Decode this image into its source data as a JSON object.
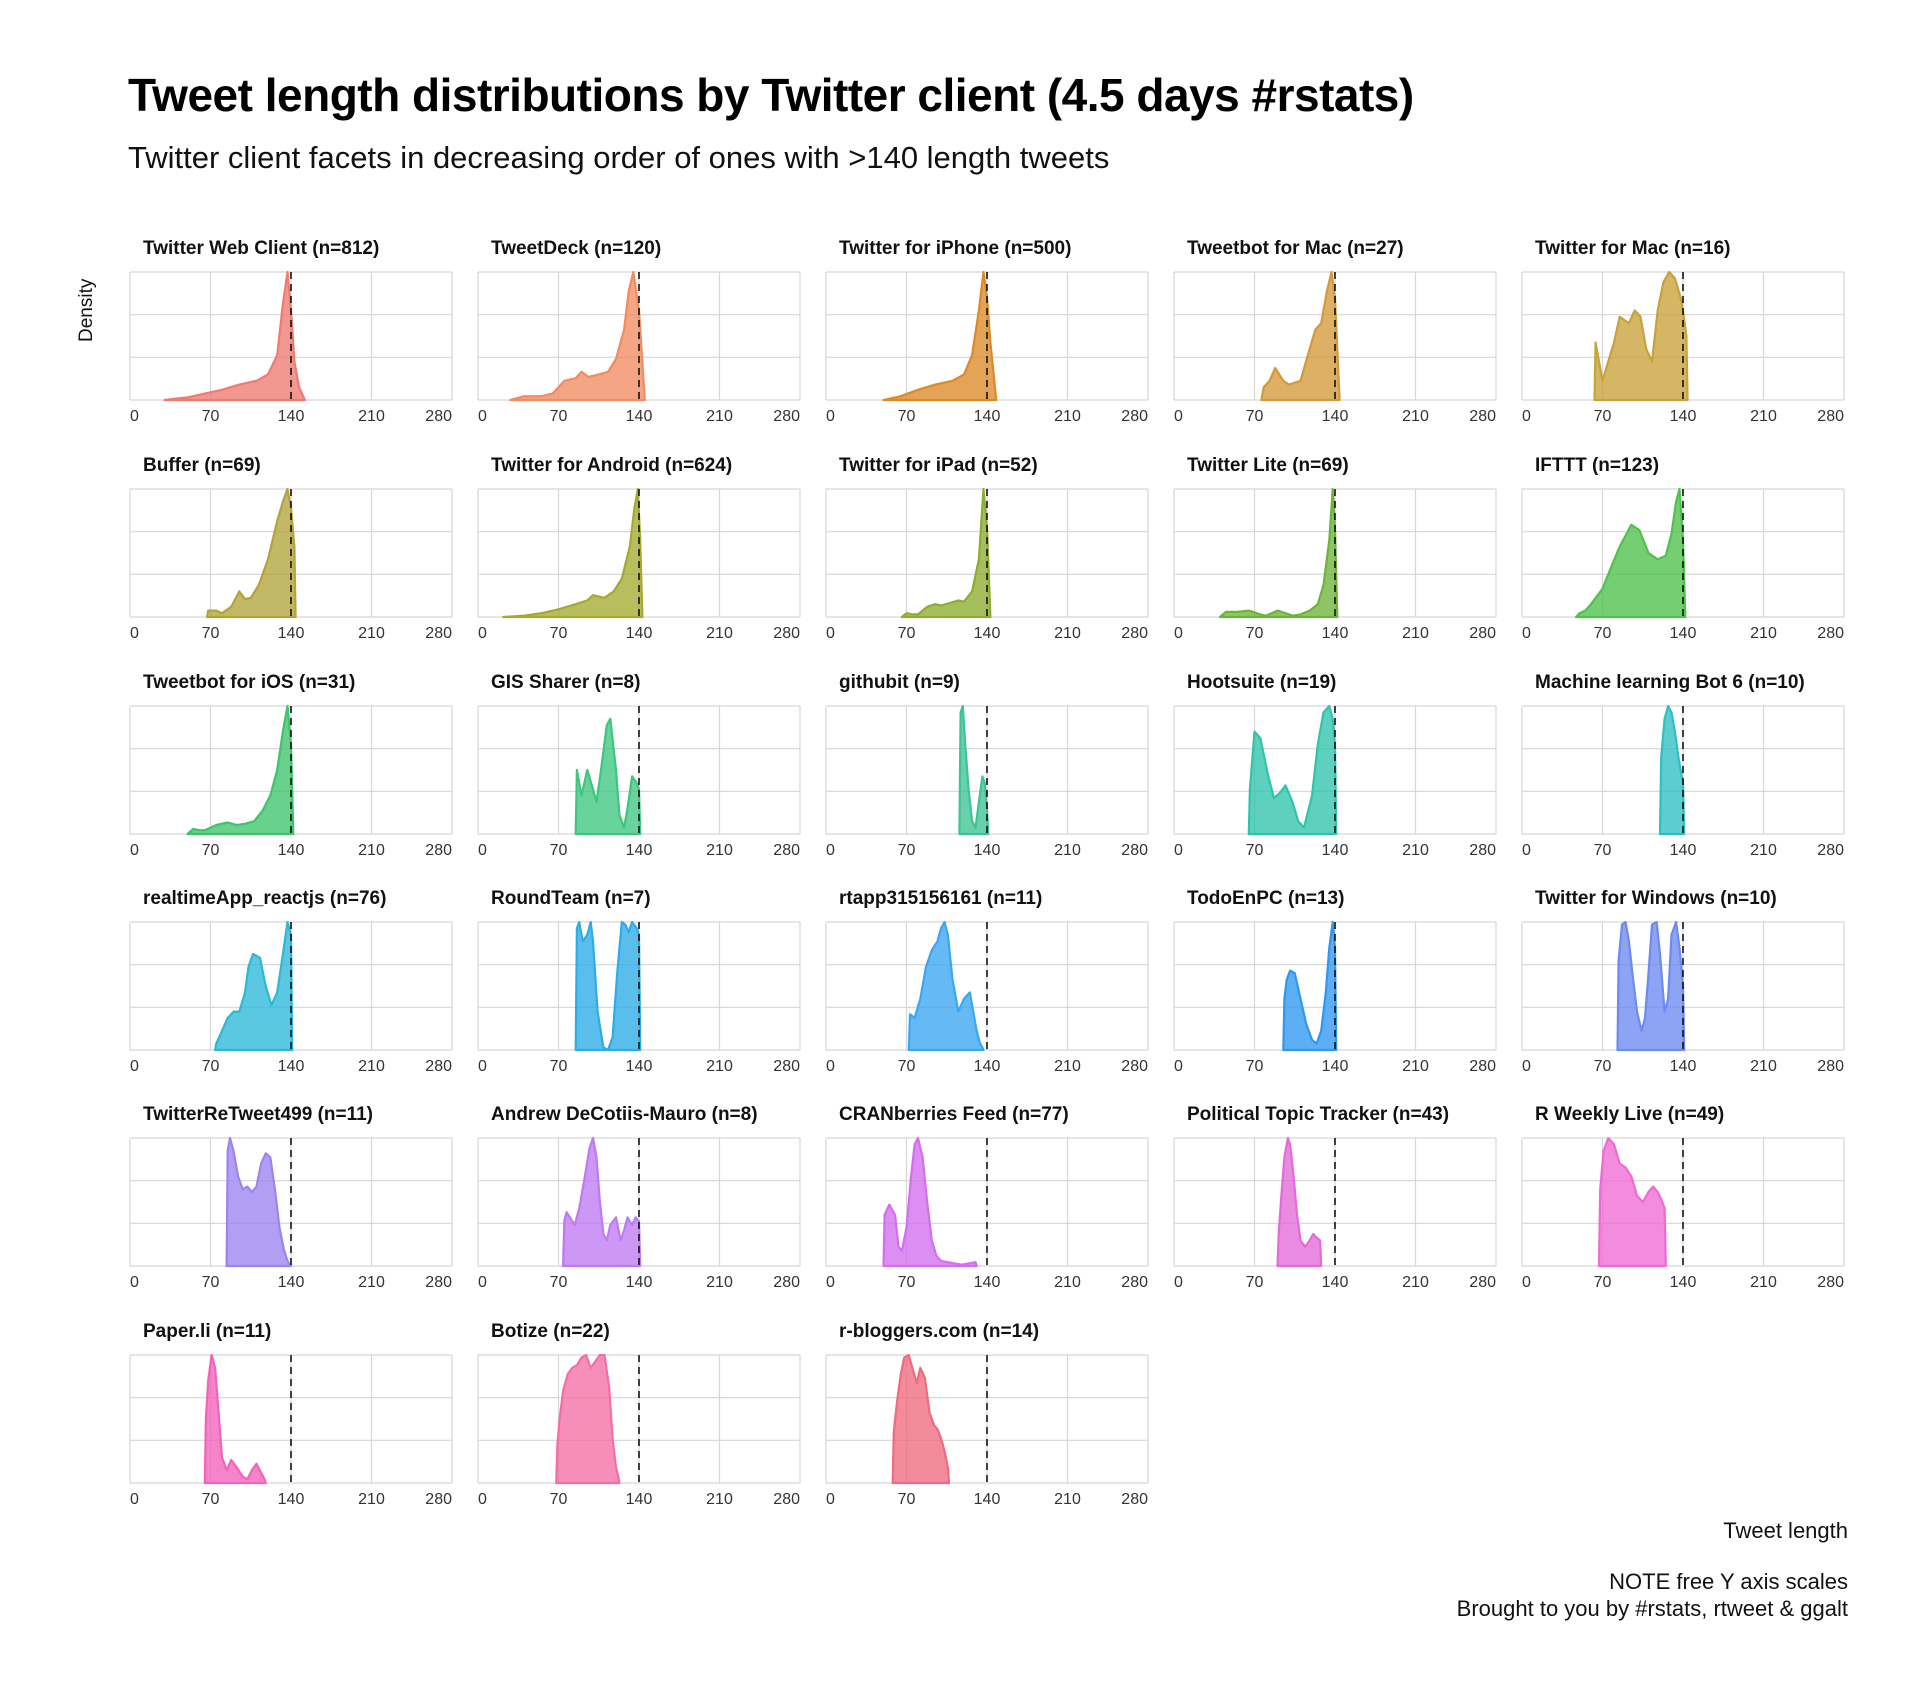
{
  "chart_data": {
    "type": "area",
    "title": "Tweet length distributions by Twitter client (4.5 days #rstats)",
    "subtitle": "Twitter client facets in decreasing order of ones with >140 length tweets",
    "xlabel": "Tweet length",
    "ylabel": "Density",
    "caption": [
      "NOTE free Y axis scales",
      "Brought to you by #rstats, rtweet & ggalt"
    ],
    "xlim": [
      0,
      280
    ],
    "x_ticks": [
      "0",
      "70",
      "140",
      "210",
      "280"
    ],
    "reference_line": 140,
    "grid": true,
    "facets": [
      {
        "label": "Twitter Web Client (n=812)",
        "color": "#F07A72",
        "x": [
          30,
          50,
          65,
          80,
          95,
          110,
          120,
          128,
          133,
          137,
          140,
          143,
          147,
          152
        ],
        "y": [
          0,
          0.02,
          0.05,
          0.08,
          0.12,
          0.15,
          0.2,
          0.35,
          0.75,
          1.0,
          0.7,
          0.3,
          0.1,
          0
        ]
      },
      {
        "label": "TweetDeck (n=120)",
        "color": "#F08C62",
        "x": [
          28,
          40,
          55,
          65,
          75,
          85,
          90,
          96,
          105,
          113,
          120,
          127,
          131,
          135,
          140,
          145
        ],
        "y": [
          0,
          0.03,
          0.03,
          0.05,
          0.15,
          0.17,
          0.22,
          0.18,
          0.2,
          0.22,
          0.32,
          0.55,
          0.85,
          1.0,
          0.7,
          0
        ]
      },
      {
        "label": "Twitter for iPhone (n=500)",
        "color": "#DC8A28",
        "x": [
          50,
          65,
          80,
          95,
          110,
          120,
          127,
          133,
          137,
          140,
          143,
          148
        ],
        "y": [
          0,
          0.03,
          0.08,
          0.12,
          0.15,
          0.2,
          0.35,
          0.7,
          1.0,
          0.8,
          0.45,
          0
        ]
      },
      {
        "label": "Tweetbot for Mac (n=27)",
        "color": "#D49A3A",
        "x": [
          76,
          78,
          83,
          88,
          95,
          100,
          110,
          118,
          123,
          128,
          133,
          137,
          140,
          144
        ],
        "y": [
          0,
          0.1,
          0.15,
          0.25,
          0.15,
          0.12,
          0.15,
          0.4,
          0.55,
          0.6,
          0.85,
          1.0,
          0.8,
          0
        ]
      },
      {
        "label": "Twitter for Mac (n=16)",
        "color": "#C8A23A",
        "x": [
          63,
          64,
          67,
          70,
          80,
          85,
          93,
          98,
          103,
          108,
          113,
          118,
          123,
          128,
          133,
          138,
          140,
          143,
          144
        ],
        "y": [
          0,
          0.45,
          0.3,
          0.15,
          0.45,
          0.65,
          0.6,
          0.7,
          0.65,
          0.4,
          0.3,
          0.7,
          0.92,
          1.0,
          0.95,
          0.8,
          0.7,
          0.5,
          0
        ]
      },
      {
        "label": "Buffer (n=69)",
        "color": "#B2A43A",
        "x": [
          67,
          68,
          75,
          80,
          88,
          95,
          100,
          105,
          112,
          120,
          128,
          133,
          137,
          140,
          143,
          144
        ],
        "y": [
          0,
          0.05,
          0.05,
          0.03,
          0.08,
          0.2,
          0.14,
          0.15,
          0.25,
          0.45,
          0.75,
          0.9,
          1.0,
          0.85,
          0.55,
          0
        ]
      },
      {
        "label": "Twitter for Android (n=624)",
        "color": "#A4AA30",
        "x": [
          22,
          40,
          55,
          70,
          85,
          95,
          100,
          110,
          118,
          125,
          132,
          136,
          139,
          141,
          143
        ],
        "y": [
          0,
          0.01,
          0.03,
          0.06,
          0.1,
          0.13,
          0.17,
          0.15,
          0.2,
          0.3,
          0.55,
          0.85,
          1.0,
          0.6,
          0
        ]
      },
      {
        "label": "Twitter for iPad (n=52)",
        "color": "#8EAC30",
        "x": [
          66,
          70,
          75,
          80,
          88,
          95,
          100,
          108,
          115,
          120,
          127,
          133,
          137,
          140,
          143
        ],
        "y": [
          0,
          0.03,
          0.02,
          0.02,
          0.08,
          0.1,
          0.09,
          0.11,
          0.13,
          0.12,
          0.2,
          0.45,
          1.0,
          0.7,
          0
        ]
      },
      {
        "label": "Twitter Lite (n=69)",
        "color": "#6EB43A",
        "x": [
          40,
          45,
          55,
          65,
          75,
          80,
          90,
          97,
          103,
          110,
          118,
          125,
          130,
          135,
          138,
          140,
          142
        ],
        "y": [
          0,
          0.04,
          0.04,
          0.05,
          0.02,
          0.01,
          0.05,
          0.03,
          0.01,
          0.02,
          0.05,
          0.1,
          0.25,
          0.6,
          1.0,
          0.7,
          0
        ]
      },
      {
        "label": "IFTTT (n=123)",
        "color": "#4EC24A",
        "x": [
          47,
          50,
          55,
          60,
          70,
          78,
          85,
          95,
          102,
          110,
          118,
          125,
          130,
          134,
          137,
          140,
          142
        ],
        "y": [
          0,
          0.03,
          0.05,
          0.1,
          0.22,
          0.4,
          0.55,
          0.72,
          0.68,
          0.5,
          0.45,
          0.48,
          0.65,
          0.9,
          1.0,
          0.6,
          0
        ]
      },
      {
        "label": "Tweetbot for iOS (n=31)",
        "color": "#3EC46A",
        "x": [
          50,
          55,
          60,
          65,
          75,
          85,
          93,
          100,
          108,
          115,
          122,
          128,
          133,
          137,
          140,
          142
        ],
        "y": [
          0,
          0.04,
          0.03,
          0.03,
          0.07,
          0.09,
          0.07,
          0.08,
          0.1,
          0.18,
          0.3,
          0.5,
          0.8,
          1.0,
          0.7,
          0
        ]
      },
      {
        "label": "GIS Sharer (n=8)",
        "color": "#3EC680",
        "x": [
          85,
          86,
          90,
          95,
          100,
          103,
          107,
          112,
          115,
          120,
          123,
          127,
          130,
          134,
          138,
          140,
          141
        ],
        "y": [
          0,
          0.5,
          0.3,
          0.5,
          0.35,
          0.25,
          0.5,
          0.85,
          0.9,
          0.5,
          0.15,
          0.05,
          0.2,
          0.45,
          0.4,
          0.35,
          0
        ]
      },
      {
        "label": "githubit (n=9)",
        "color": "#3EC494",
        "x": [
          116,
          117,
          119,
          121,
          124,
          127,
          130,
          133,
          136,
          138,
          140,
          141
        ],
        "y": [
          0,
          0.95,
          1.0,
          0.7,
          0.35,
          0.1,
          0.05,
          0.25,
          0.45,
          0.4,
          0.2,
          0
        ]
      },
      {
        "label": "Hootsuite (n=19)",
        "color": "#30C4AA",
        "x": [
          65,
          66,
          70,
          75,
          82,
          87,
          92,
          97,
          103,
          108,
          113,
          120,
          125,
          130,
          135,
          138,
          140,
          141
        ],
        "y": [
          0,
          0.35,
          0.8,
          0.75,
          0.45,
          0.28,
          0.32,
          0.38,
          0.25,
          0.1,
          0.05,
          0.3,
          0.7,
          0.95,
          1.0,
          0.9,
          0.7,
          0
        ]
      },
      {
        "label": "Machine learning Bot 6 (n=10)",
        "color": "#2EBFC4",
        "x": [
          120,
          121,
          124,
          127,
          130,
          133,
          136,
          139,
          140,
          141
        ],
        "y": [
          0,
          0.6,
          0.9,
          1.0,
          0.95,
          0.8,
          0.6,
          0.45,
          0.4,
          0
        ]
      },
      {
        "label": "realtimeApp_reactjs (n=76)",
        "color": "#2CB8D8",
        "x": [
          74,
          75,
          80,
          85,
          90,
          95,
          100,
          103,
          107,
          113,
          118,
          123,
          128,
          133,
          137,
          140,
          141
        ],
        "y": [
          0,
          0.05,
          0.15,
          0.25,
          0.3,
          0.3,
          0.45,
          0.65,
          0.75,
          0.72,
          0.5,
          0.35,
          0.45,
          0.75,
          1.0,
          0.9,
          0
        ]
      },
      {
        "label": "RoundTeam (n=7)",
        "color": "#2CACE8",
        "x": [
          85,
          86,
          88,
          91,
          95,
          98,
          100,
          104,
          109,
          113,
          117,
          121,
          125,
          128,
          131,
          134,
          138,
          140,
          141
        ],
        "y": [
          0,
          0.95,
          1.0,
          0.85,
          0.9,
          1.0,
          0.85,
          0.3,
          0.02,
          0.0,
          0.1,
          0.6,
          1.0,
          0.98,
          0.92,
          1.0,
          0.95,
          0.9,
          0
        ]
      },
      {
        "label": "rtapp315156161 (n=11)",
        "color": "#3AA6F4",
        "x": [
          72,
          73,
          77,
          82,
          87,
          92,
          97,
          100,
          103,
          106,
          110,
          115,
          120,
          125,
          128,
          131,
          134,
          136,
          137
        ],
        "y": [
          0,
          0.28,
          0.25,
          0.4,
          0.65,
          0.78,
          0.85,
          0.95,
          1.0,
          0.9,
          0.55,
          0.3,
          0.4,
          0.45,
          0.3,
          0.15,
          0.05,
          0.02,
          0
        ]
      },
      {
        "label": "TodoEnPC (n=13)",
        "color": "#2E98F0",
        "x": [
          95,
          96,
          98,
          101,
          105,
          110,
          115,
          120,
          124,
          128,
          132,
          135,
          138,
          140,
          141
        ],
        "y": [
          0,
          0.4,
          0.55,
          0.62,
          0.6,
          0.4,
          0.2,
          0.08,
          0.05,
          0.15,
          0.45,
          0.8,
          1.0,
          0.8,
          0
        ]
      },
      {
        "label": "Twitter for Windows (n=10)",
        "color": "#6C8AF0",
        "x": [
          83,
          84,
          87,
          90,
          93,
          96,
          100,
          104,
          107,
          110,
          113,
          117,
          120,
          124,
          127,
          130,
          134,
          137,
          140,
          141
        ],
        "y": [
          0,
          0.7,
          0.98,
          1.0,
          0.85,
          0.6,
          0.3,
          0.15,
          0.25,
          0.6,
          0.98,
          1.0,
          0.75,
          0.3,
          0.4,
          0.9,
          1.0,
          0.8,
          0.5,
          0
        ]
      },
      {
        "label": "TwitterReTweet499 (n=11)",
        "color": "#9C84F0",
        "x": [
          84,
          85,
          87,
          90,
          94,
          98,
          102,
          106,
          110,
          114,
          118,
          122,
          126,
          130,
          134,
          137,
          139,
          140
        ],
        "y": [
          0,
          0.9,
          1.0,
          0.9,
          0.7,
          0.6,
          0.62,
          0.58,
          0.62,
          0.8,
          0.88,
          0.85,
          0.6,
          0.3,
          0.12,
          0.04,
          0.01,
          0
        ]
      },
      {
        "label": "Andrew DeCotiis-Mauro (n=8)",
        "color": "#BE7AF2",
        "x": [
          74,
          75,
          77,
          80,
          84,
          88,
          92,
          97,
          100,
          103,
          106,
          109,
          112,
          115,
          120,
          124,
          127,
          130,
          134,
          137,
          140,
          141
        ],
        "y": [
          0,
          0.35,
          0.42,
          0.38,
          0.32,
          0.45,
          0.65,
          0.92,
          1.0,
          0.85,
          0.5,
          0.25,
          0.2,
          0.32,
          0.38,
          0.2,
          0.28,
          0.38,
          0.32,
          0.38,
          0.35,
          0
        ]
      },
      {
        "label": "CRANberries Feed (n=77)",
        "color": "#D46EF0",
        "x": [
          50,
          51,
          55,
          60,
          63,
          66,
          70,
          74,
          77,
          80,
          84,
          88,
          92,
          96,
          100,
          106,
          112,
          118,
          124,
          130,
          131
        ],
        "y": [
          0,
          0.4,
          0.48,
          0.4,
          0.15,
          0.12,
          0.3,
          0.7,
          0.95,
          1.0,
          0.85,
          0.5,
          0.2,
          0.08,
          0.04,
          0.03,
          0.02,
          0.01,
          0.02,
          0.03,
          0
        ]
      },
      {
        "label": "Political Topic Tracker (n=43)",
        "color": "#E46ADA",
        "x": [
          90,
          91,
          93,
          96,
          99,
          101,
          104,
          107,
          110,
          114,
          118,
          121,
          124,
          127,
          128
        ],
        "y": [
          0,
          0.25,
          0.5,
          0.85,
          1.0,
          0.95,
          0.7,
          0.4,
          0.2,
          0.15,
          0.2,
          0.25,
          0.22,
          0.2,
          0
        ]
      },
      {
        "label": "R Weekly Live (n=49)",
        "color": "#F06AD6",
        "x": [
          67,
          68,
          71,
          75,
          80,
          85,
          90,
          95,
          100,
          105,
          110,
          114,
          118,
          122,
          124,
          125
        ],
        "y": [
          0,
          0.6,
          0.9,
          1.0,
          0.95,
          0.8,
          0.77,
          0.7,
          0.55,
          0.5,
          0.58,
          0.62,
          0.58,
          0.5,
          0.45,
          0
        ]
      },
      {
        "label": "Paper.li (n=11)",
        "color": "#F462BC",
        "x": [
          65,
          66,
          68,
          71,
          74,
          77,
          80,
          84,
          88,
          93,
          98,
          102,
          106,
          110,
          114,
          117,
          118
        ],
        "y": [
          0,
          0.5,
          0.8,
          1.0,
          0.9,
          0.55,
          0.2,
          0.1,
          0.18,
          0.12,
          0.05,
          0.03,
          0.1,
          0.15,
          0.08,
          0.03,
          0
        ]
      },
      {
        "label": "Botize (n=22)",
        "color": "#F46EA6",
        "x": [
          68,
          69,
          71,
          74,
          78,
          82,
          86,
          90,
          94,
          98,
          102,
          106,
          110,
          114,
          117,
          120,
          122,
          123
        ],
        "y": [
          0,
          0.3,
          0.5,
          0.72,
          0.85,
          0.9,
          0.92,
          0.98,
          1.0,
          0.9,
          0.95,
          1.0,
          1.0,
          0.75,
          0.35,
          0.12,
          0.05,
          0
        ]
      },
      {
        "label": "r-bloggers.com (n=14)",
        "color": "#F06A80",
        "x": [
          58,
          59,
          62,
          65,
          68,
          72,
          75,
          79,
          82,
          86,
          90,
          94,
          97,
          100,
          103,
          106,
          107
        ],
        "y": [
          0,
          0.4,
          0.65,
          0.85,
          0.98,
          1.0,
          0.9,
          0.78,
          0.9,
          0.82,
          0.55,
          0.45,
          0.42,
          0.35,
          0.25,
          0.12,
          0
        ]
      }
    ]
  }
}
